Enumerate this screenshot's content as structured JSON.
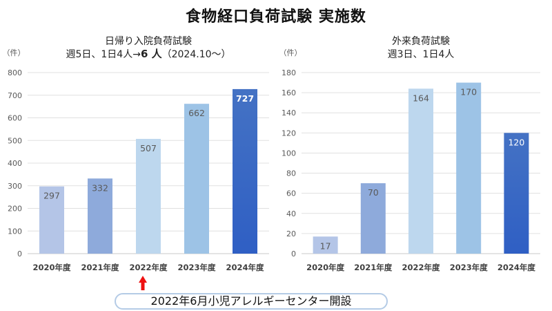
{
  "page": {
    "title": "食物経口負荷試験 実施数",
    "note": "2022年6月小児アレルギーセンター開設"
  },
  "colors": {
    "bar_2020": "#b4c5e7",
    "bar_2021": "#8eaadb",
    "bar_2022": "#bdd7ee",
    "bar_2023": "#9dc3e6",
    "bar_2024_top": "#4472c4",
    "bar_2024_bottom": "#2f5fc4",
    "arrow": "#ee1111",
    "label_dark": "#595959",
    "label_light": "#ffffff"
  },
  "chart_data": [
    {
      "type": "bar",
      "title": "日帰り入院負荷試験",
      "subtitle_prefix": "週5日、1日4人→",
      "subtitle_bold": "6 人",
      "subtitle_suffix": "（2024.10～）",
      "unit": "（件）",
      "categories": [
        "2020年度",
        "2021年度",
        "2022年度",
        "2023年度",
        "2024年度"
      ],
      "values": [
        297,
        332,
        507,
        662,
        727
      ],
      "ylim": [
        0,
        800
      ],
      "yticks": [
        0,
        100,
        200,
        300,
        400,
        500,
        600,
        700,
        800
      ],
      "highlight_label_index": 4
    },
    {
      "type": "bar",
      "title": "外来負荷試験",
      "subtitle_prefix": "週3日、1日4人",
      "subtitle_bold": "",
      "subtitle_suffix": "",
      "unit": "（件）",
      "categories": [
        "2020年度",
        "2021年度",
        "2022年度",
        "2023年度",
        "2024年度"
      ],
      "values": [
        17,
        70,
        164,
        170,
        120
      ],
      "ylim": [
        0,
        180
      ],
      "yticks": [
        0,
        20,
        40,
        60,
        80,
        100,
        120,
        140,
        160,
        180
      ],
      "highlight_label_index": -1
    }
  ]
}
